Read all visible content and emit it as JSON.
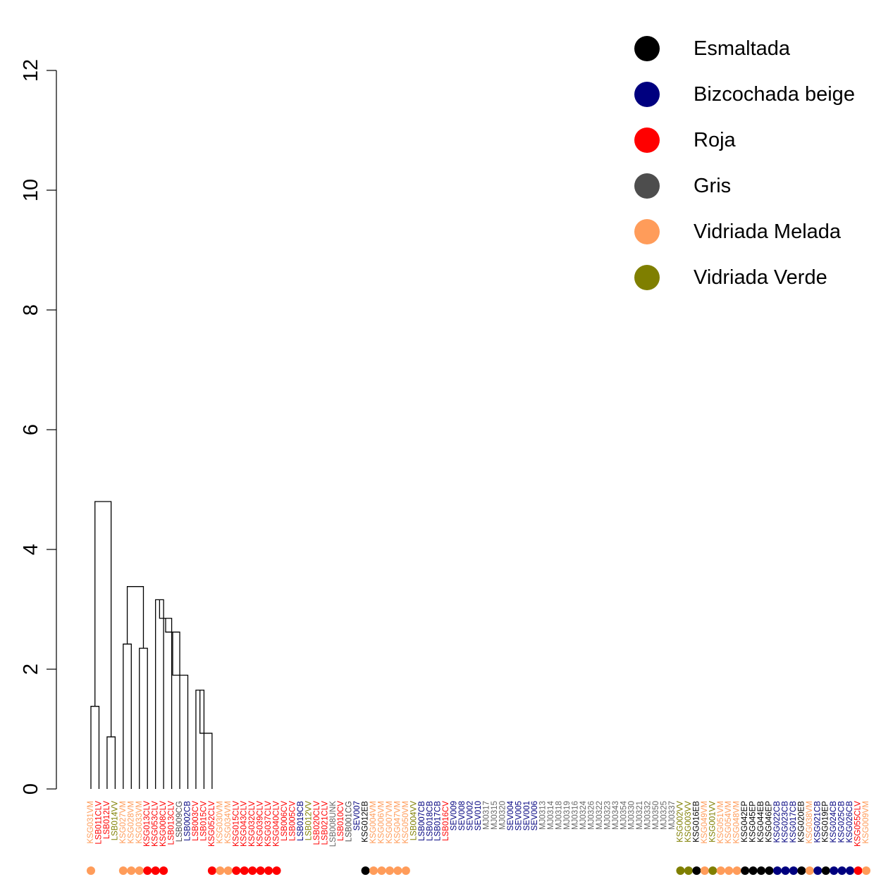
{
  "chart_data": {
    "type": "dendrogram",
    "ylim": [
      0,
      12
    ],
    "yticks": [
      0,
      2,
      4,
      6,
      8,
      10,
      12
    ],
    "colors": {
      "Esmaltada": "#000000",
      "Bizcochada beige": "#00007f",
      "Roja": "#ff0000",
      "Gris": "#4d4d4d",
      "Vidriada Melada": "#ff9c5a",
      "Vidriada Verde": "#7f7f00",
      "Unmarked": "#666666"
    },
    "legend": [
      {
        "label": "Esmaltada",
        "color": "#000000"
      },
      {
        "label": "Bizcochada beige",
        "color": "#00007f"
      },
      {
        "label": "Roja",
        "color": "#ff0000"
      },
      {
        "label": "Gris",
        "color": "#4d4d4d"
      },
      {
        "label": "Vidriada Melada",
        "color": "#ff9c5a"
      },
      {
        "label": "Vidriada Verde",
        "color": "#7f7f00"
      }
    ],
    "legend_position": "top-right",
    "leaves": [
      {
        "label": "KSG031VM",
        "group": "Vidriada Melada",
        "dot": true
      },
      {
        "label": "LSB011CLV",
        "group": "Roja",
        "dot": false
      },
      {
        "label": "LSB012LV",
        "group": "Roja",
        "dot": false
      },
      {
        "label": "LSB014VV",
        "group": "Vidriada Verde",
        "dot": false
      },
      {
        "label": "KSG027VM",
        "group": "Vidriada Melada",
        "dot": true
      },
      {
        "label": "KSG028VM",
        "group": "Vidriada Melada",
        "dot": true
      },
      {
        "label": "KSG033VM",
        "group": "Vidriada Melada",
        "dot": true
      },
      {
        "label": "KSG013CLV",
        "group": "Roja",
        "dot": true
      },
      {
        "label": "KSG053CLV",
        "group": "Roja",
        "dot": true
      },
      {
        "label": "KSG008CLV",
        "group": "Roja",
        "dot": true
      },
      {
        "label": "LSB013CLV",
        "group": "Roja",
        "dot": false
      },
      {
        "label": "LSB009CG",
        "group": "Gris",
        "dot": false
      },
      {
        "label": "LSB002CB",
        "group": "Bizcochada beige",
        "dot": false
      },
      {
        "label": "LSB003CV",
        "group": "Roja",
        "dot": false
      },
      {
        "label": "LSB015CV",
        "group": "Roja",
        "dot": false
      },
      {
        "label": "KSG052CLV",
        "group": "Roja",
        "dot": true
      },
      {
        "label": "KSG030VM",
        "group": "Vidriada Melada",
        "dot": true
      },
      {
        "label": "KSG034VM",
        "group": "Vidriada Melada",
        "dot": true
      },
      {
        "label": "KSG015CLV",
        "group": "Roja",
        "dot": true
      },
      {
        "label": "KSG043CLV",
        "group": "Roja",
        "dot": true
      },
      {
        "label": "KSG032CLV",
        "group": "Roja",
        "dot": true
      },
      {
        "label": "KSG039CLV",
        "group": "Roja",
        "dot": true
      },
      {
        "label": "KSG037CLV",
        "group": "Roja",
        "dot": true
      },
      {
        "label": "KSG040CLV",
        "group": "Roja",
        "dot": true
      },
      {
        "label": "LSB006CV",
        "group": "Roja",
        "dot": false
      },
      {
        "label": "LSB005CV",
        "group": "Roja",
        "dot": false
      },
      {
        "label": "LSB019CB",
        "group": "Bizcochada beige",
        "dot": false
      },
      {
        "label": "LSB012VV",
        "group": "Vidriada Verde",
        "dot": false
      },
      {
        "label": "LSB020CLV",
        "group": "Roja",
        "dot": false
      },
      {
        "label": "LSB021CLV",
        "group": "Roja",
        "dot": false
      },
      {
        "label": "LSB008UNK",
        "group": "Unmarked",
        "dot": false
      },
      {
        "label": "LSB010CV",
        "group": "Roja",
        "dot": false
      },
      {
        "label": "LSB001CG",
        "group": "Gris",
        "dot": false
      },
      {
        "label": "SEV007",
        "group": "Bizcochada beige",
        "dot": false
      },
      {
        "label": "KSG012EB",
        "group": "Esmaltada",
        "dot": true
      },
      {
        "label": "KSG004VM",
        "group": "Vidriada Melada",
        "dot": true
      },
      {
        "label": "KSG006VM",
        "group": "Vidriada Melada",
        "dot": true
      },
      {
        "label": "KSG007VM",
        "group": "Vidriada Melada",
        "dot": true
      },
      {
        "label": "KSG047VM",
        "group": "Vidriada Melada",
        "dot": true
      },
      {
        "label": "KSG050VM",
        "group": "Vidriada Melada",
        "dot": true
      },
      {
        "label": "LSB004VV",
        "group": "Vidriada Verde",
        "dot": false
      },
      {
        "label": "LSB007CB",
        "group": "Bizcochada beige",
        "dot": false
      },
      {
        "label": "LSB018CB",
        "group": "Bizcochada beige",
        "dot": false
      },
      {
        "label": "LSB017CB",
        "group": "Bizcochada beige",
        "dot": false
      },
      {
        "label": "LSB016CV",
        "group": "Roja",
        "dot": false
      },
      {
        "label": "SEV009",
        "group": "Bizcochada beige",
        "dot": false
      },
      {
        "label": "SEV008",
        "group": "Bizcochada beige",
        "dot": false
      },
      {
        "label": "SEV002",
        "group": "Bizcochada beige",
        "dot": false
      },
      {
        "label": "SEV010",
        "group": "Bizcochada beige",
        "dot": false
      },
      {
        "label": "MJ0317",
        "group": "Unmarked",
        "dot": false
      },
      {
        "label": "MJ0315",
        "group": "Unmarked",
        "dot": false
      },
      {
        "label": "MJ0320",
        "group": "Unmarked",
        "dot": false
      },
      {
        "label": "SEV004",
        "group": "Bizcochada beige",
        "dot": false
      },
      {
        "label": "SEV005",
        "group": "Bizcochada beige",
        "dot": false
      },
      {
        "label": "SEV001",
        "group": "Bizcochada beige",
        "dot": false
      },
      {
        "label": "SEV006",
        "group": "Bizcochada beige",
        "dot": false
      },
      {
        "label": "MJ0313",
        "group": "Unmarked",
        "dot": false
      },
      {
        "label": "MJ0314",
        "group": "Unmarked",
        "dot": false
      },
      {
        "label": "MJ0318",
        "group": "Unmarked",
        "dot": false
      },
      {
        "label": "MJ0319",
        "group": "Unmarked",
        "dot": false
      },
      {
        "label": "MJ0316",
        "group": "Unmarked",
        "dot": false
      },
      {
        "label": "MJ0324",
        "group": "Unmarked",
        "dot": false
      },
      {
        "label": "MJ0326",
        "group": "Unmarked",
        "dot": false
      },
      {
        "label": "MJ0322",
        "group": "Unmarked",
        "dot": false
      },
      {
        "label": "MJ0323",
        "group": "Unmarked",
        "dot": false
      },
      {
        "label": "MJ0343",
        "group": "Unmarked",
        "dot": false
      },
      {
        "label": "MJ0354",
        "group": "Unmarked",
        "dot": false
      },
      {
        "label": "MJ0330",
        "group": "Unmarked",
        "dot": false
      },
      {
        "label": "MJ0321",
        "group": "Unmarked",
        "dot": false
      },
      {
        "label": "MJ0332",
        "group": "Unmarked",
        "dot": false
      },
      {
        "label": "MJ0350",
        "group": "Unmarked",
        "dot": false
      },
      {
        "label": "MJ0325",
        "group": "Unmarked",
        "dot": false
      },
      {
        "label": "MJ0337",
        "group": "Unmarked",
        "dot": false
      },
      {
        "label": "KSG002VV",
        "group": "Vidriada Verde",
        "dot": true
      },
      {
        "label": "KSG003VV",
        "group": "Vidriada Verde",
        "dot": true
      },
      {
        "label": "KSG016EB",
        "group": "Esmaltada",
        "dot": true
      },
      {
        "label": "KSG049VM",
        "group": "Vidriada Melada",
        "dot": true
      },
      {
        "label": "KSG001VV",
        "group": "Vidriada Verde",
        "dot": true
      },
      {
        "label": "KSG051VM",
        "group": "Vidriada Melada",
        "dot": true
      },
      {
        "label": "KSG054VM",
        "group": "Vidriada Melada",
        "dot": true
      },
      {
        "label": "KSG048VM",
        "group": "Vidriada Melada",
        "dot": true
      },
      {
        "label": "KSG042EP",
        "group": "Esmaltada",
        "dot": true
      },
      {
        "label": "KSG045EP",
        "group": "Esmaltada",
        "dot": true
      },
      {
        "label": "KSG044EB",
        "group": "Esmaltada",
        "dot": true
      },
      {
        "label": "KSG046EP",
        "group": "Esmaltada",
        "dot": true
      },
      {
        "label": "KSG022CB",
        "group": "Bizcochada beige",
        "dot": true
      },
      {
        "label": "KSG023CB",
        "group": "Bizcochada beige",
        "dot": true
      },
      {
        "label": "KSG017CB",
        "group": "Bizcochada beige",
        "dot": true
      },
      {
        "label": "KSG020EB",
        "group": "Esmaltada",
        "dot": true
      },
      {
        "label": "KSG038VM",
        "group": "Vidriada Melada",
        "dot": true
      },
      {
        "label": "KSG021CB",
        "group": "Bizcochada beige",
        "dot": true
      },
      {
        "label": "KSG019EP",
        "group": "Esmaltada",
        "dot": true
      },
      {
        "label": "KSG024CB",
        "group": "Bizcochada beige",
        "dot": true
      },
      {
        "label": "KSG025CB",
        "group": "Bizcochada beige",
        "dot": true
      },
      {
        "label": "KSG026CB",
        "group": "Bizcochada beige",
        "dot": true
      },
      {
        "label": "KSG055CLV",
        "group": "Roja",
        "dot": true
      },
      {
        "label": "KSG009VM",
        "group": "Vidriada Melada",
        "dot": true
      }
    ],
    "merges": [
      [
        0,
        1.38,
        [
          1
        ],
        [
          2
        ]
      ],
      [
        1,
        0.87,
        [
          3
        ],
        [
          4
        ]
      ],
      [
        2,
        4.8,
        "m0",
        "m1"
      ],
      [
        3,
        2.42,
        [
          5
        ],
        [
          6
        ]
      ],
      [
        4,
        2.35,
        [
          7
        ],
        [
          8
        ]
      ],
      [
        5,
        3.38,
        "m3",
        "m4"
      ],
      [
        6,
        3.16,
        [
          9
        ],
        [
          10
        ]
      ],
      [
        7,
        2.85,
        [
          11
        ],
        "m6"
      ],
      [
        8,
        2.62,
        [
          12
        ],
        "m7"
      ],
      [
        9,
        1.9,
        [
          13
        ],
        "m8"
      ],
      [
        10,
        1.65,
        [
          14
        ],
        [
          15
        ]
      ],
      [
        11,
        0.93,
        [
          16
        ],
        "m10"
      ]
    ]
  }
}
